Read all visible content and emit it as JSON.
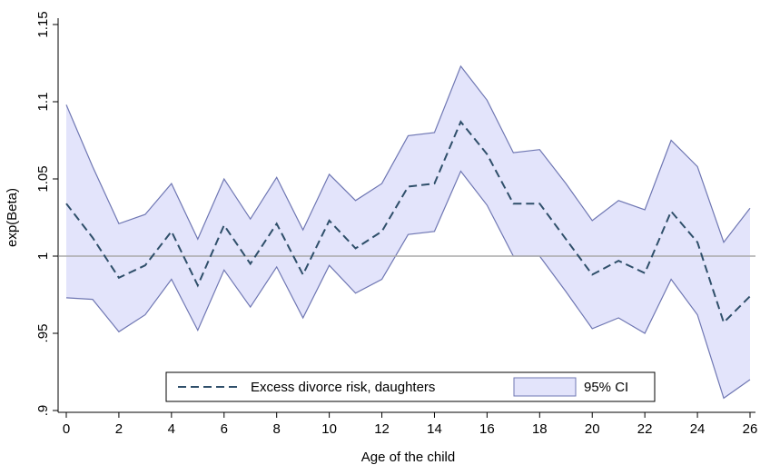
{
  "chart_data": {
    "type": "line",
    "xlabel": "Age of the child",
    "ylabel": "exp(Beta)",
    "xlim": [
      0,
      26
    ],
    "ylim": [
      0.9,
      1.15
    ],
    "x_ticks": [
      0,
      2,
      4,
      6,
      8,
      10,
      12,
      14,
      16,
      18,
      20,
      22,
      24,
      26
    ],
    "x_tick_labels": [
      "0",
      "2",
      "4",
      "6",
      "8",
      "10",
      "12",
      "14",
      "16",
      "18",
      "20",
      "22",
      "24",
      "26"
    ],
    "y_ticks": [
      0.9,
      0.95,
      1.0,
      1.05,
      1.1,
      1.15
    ],
    "y_tick_labels": [
      ".9",
      ".95",
      "1",
      "1.05",
      "1.1",
      "1.15"
    ],
    "reference_line": 1,
    "x": [
      0,
      1,
      2,
      3,
      4,
      5,
      6,
      7,
      8,
      9,
      10,
      11,
      12,
      13,
      14,
      15,
      16,
      17,
      18,
      19,
      20,
      21,
      22,
      23,
      24,
      25,
      26
    ],
    "series": [
      {
        "name": "Excess divorce risk, daughters",
        "style": "dashed",
        "color": "#2f4f6a",
        "values": [
          1.034,
          1.012,
          0.986,
          0.994,
          1.016,
          0.981,
          1.02,
          0.995,
          1.021,
          0.988,
          1.023,
          1.005,
          1.016,
          1.045,
          1.047,
          1.087,
          1.066,
          1.034,
          1.034,
          1.011,
          0.988,
          0.997,
          0.989,
          1.029,
          1.009,
          0.957,
          0.974
        ]
      }
    ],
    "band": {
      "name": "95% CI",
      "fill": "#e3e4fb",
      "stroke": "#6f77b3",
      "lower": [
        0.973,
        0.972,
        0.951,
        0.962,
        0.985,
        0.952,
        0.991,
        0.967,
        0.993,
        0.96,
        0.994,
        0.976,
        0.985,
        1.014,
        1.016,
        1.055,
        1.033,
        1.0,
        1.0,
        0.977,
        0.953,
        0.96,
        0.95,
        0.985,
        0.962,
        0.908,
        0.92
      ],
      "upper": [
        1.098,
        1.058,
        1.021,
        1.027,
        1.047,
        1.011,
        1.05,
        1.024,
        1.051,
        1.017,
        1.053,
        1.036,
        1.047,
        1.078,
        1.08,
        1.123,
        1.101,
        1.067,
        1.069,
        1.047,
        1.023,
        1.036,
        1.03,
        1.075,
        1.058,
        1.009,
        1.031
      ]
    },
    "legend": {
      "position": "bottom-center",
      "items": [
        "Excess divorce risk, daughters",
        "95% CI"
      ]
    },
    "grid": false
  }
}
